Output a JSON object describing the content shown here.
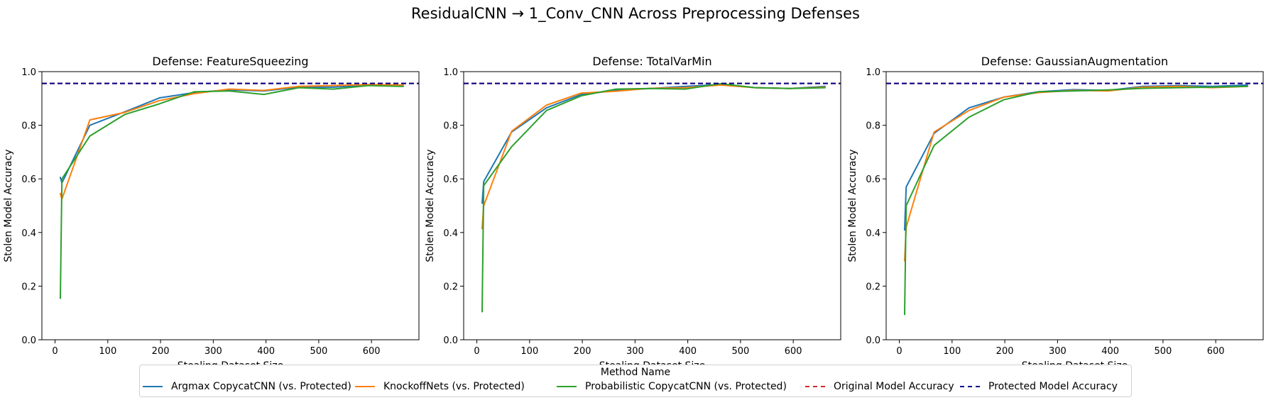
{
  "suptitle": "ResidualCNN → 1_Conv_CNN Across Preprocessing Defenses",
  "legend": {
    "title": "Method Name",
    "items": [
      {
        "label": "Argmax CopycatCNN (vs. Protected)",
        "color": "#1f77b4",
        "style": "solid"
      },
      {
        "label": "KnockoffNets (vs. Protected)",
        "color": "#ff7f0e",
        "style": "solid"
      },
      {
        "label": "Probabilistic CopycatCNN (vs. Protected)",
        "color": "#2ca02c",
        "style": "solid"
      },
      {
        "label": "Original Model Accuracy",
        "color": "#d62728",
        "style": "dashed"
      },
      {
        "label": "Protected Model Accuracy",
        "color": "#00008b",
        "style": "dashed"
      }
    ]
  },
  "chart_data": [
    {
      "type": "line",
      "title": "Defense: FeatureSqueezing",
      "xlabel": "Stealing Dataset Size",
      "ylabel": "Stolen Model Accuracy",
      "xlim": [
        -25,
        690
      ],
      "ylim": [
        0,
        1
      ],
      "xticks": [
        0,
        100,
        200,
        300,
        400,
        500,
        600
      ],
      "yticks": [
        0.0,
        0.2,
        0.4,
        0.6,
        0.8,
        1.0
      ],
      "reference_lines": [
        {
          "name": "Original Model Accuracy",
          "y": 0.956,
          "color": "#d62728"
        },
        {
          "name": "Protected Model Accuracy",
          "y": 0.956,
          "color": "#00008b"
        }
      ],
      "series": [
        {
          "name": "Argmax CopycatCNN (vs. Protected)",
          "color": "#1f77b4",
          "x": [
            10,
            13,
            66,
            132,
            198,
            264,
            330,
            396,
            462,
            528,
            594,
            660
          ],
          "y": [
            0.605,
            0.585,
            0.8,
            0.85,
            0.902,
            0.922,
            0.932,
            0.928,
            0.942,
            0.942,
            0.95,
            0.95
          ]
        },
        {
          "name": "KnockoffNets (vs. Protected)",
          "color": "#ff7f0e",
          "x": [
            10,
            13,
            66,
            132,
            198,
            264,
            330,
            396,
            462,
            528,
            594,
            660
          ],
          "y": [
            0.545,
            0.525,
            0.82,
            0.848,
            0.892,
            0.918,
            0.935,
            0.93,
            0.945,
            0.948,
            0.952,
            0.95
          ]
        },
        {
          "name": "Probabilistic CopycatCNN (vs. Protected)",
          "color": "#2ca02c",
          "x": [
            10,
            13,
            66,
            132,
            198,
            264,
            330,
            396,
            462,
            528,
            594,
            660
          ],
          "y": [
            0.155,
            0.6,
            0.76,
            0.84,
            0.88,
            0.925,
            0.928,
            0.915,
            0.94,
            0.935,
            0.948,
            0.945
          ]
        }
      ]
    },
    {
      "type": "line",
      "title": "Defense: TotalVarMin",
      "xlabel": "Stealing Dataset Size",
      "ylabel": "Stolen Model Accuracy",
      "xlim": [
        -25,
        690
      ],
      "ylim": [
        0,
        1
      ],
      "xticks": [
        0,
        100,
        200,
        300,
        400,
        500,
        600
      ],
      "yticks": [
        0.0,
        0.2,
        0.4,
        0.6,
        0.8,
        1.0
      ],
      "reference_lines": [
        {
          "name": "Original Model Accuracy",
          "y": 0.956,
          "color": "#d62728"
        },
        {
          "name": "Protected Model Accuracy",
          "y": 0.956,
          "color": "#00008b"
        }
      ],
      "series": [
        {
          "name": "Argmax CopycatCNN (vs. Protected)",
          "color": "#1f77b4",
          "x": [
            10,
            13,
            66,
            132,
            198,
            264,
            330,
            396,
            462,
            528,
            594,
            660
          ],
          "y": [
            0.51,
            0.59,
            0.775,
            0.865,
            0.915,
            0.93,
            0.937,
            0.945,
            0.952,
            0.94,
            0.937,
            0.945
          ]
        },
        {
          "name": "KnockoffNets (vs. Protected)",
          "color": "#ff7f0e",
          "x": [
            10,
            13,
            66,
            132,
            198,
            264,
            330,
            396,
            462,
            528,
            594,
            660
          ],
          "y": [
            0.415,
            0.5,
            0.778,
            0.875,
            0.92,
            0.927,
            0.938,
            0.94,
            0.95,
            0.94,
            0.937,
            0.942
          ]
        },
        {
          "name": "Probabilistic CopycatCNN (vs. Protected)",
          "color": "#2ca02c",
          "x": [
            10,
            13,
            66,
            132,
            198,
            264,
            330,
            396,
            462,
            528,
            594,
            660
          ],
          "y": [
            0.105,
            0.575,
            0.72,
            0.855,
            0.91,
            0.935,
            0.937,
            0.935,
            0.955,
            0.94,
            0.937,
            0.94
          ]
        }
      ]
    },
    {
      "type": "line",
      "title": "Defense: GaussianAugmentation",
      "xlabel": "Stealing Dataset Size",
      "ylabel": "Stolen Model Accuracy",
      "xlim": [
        -25,
        690
      ],
      "ylim": [
        0,
        1
      ],
      "xticks": [
        0,
        100,
        200,
        300,
        400,
        500,
        600
      ],
      "yticks": [
        0.0,
        0.2,
        0.4,
        0.6,
        0.8,
        1.0
      ],
      "reference_lines": [
        {
          "name": "Original Model Accuracy",
          "y": 0.956,
          "color": "#d62728"
        },
        {
          "name": "Protected Model Accuracy",
          "y": 0.956,
          "color": "#00008b"
        }
      ],
      "series": [
        {
          "name": "Argmax CopycatCNN (vs. Protected)",
          "color": "#1f77b4",
          "x": [
            10,
            13,
            66,
            132,
            198,
            264,
            330,
            396,
            462,
            528,
            594,
            660
          ],
          "y": [
            0.41,
            0.57,
            0.77,
            0.865,
            0.905,
            0.925,
            0.933,
            0.93,
            0.945,
            0.948,
            0.945,
            0.95
          ]
        },
        {
          "name": "KnockoffNets (vs. Protected)",
          "color": "#ff7f0e",
          "x": [
            10,
            13,
            66,
            132,
            198,
            264,
            330,
            396,
            462,
            528,
            594,
            660
          ],
          "y": [
            0.295,
            0.42,
            0.775,
            0.855,
            0.905,
            0.922,
            0.93,
            0.928,
            0.942,
            0.945,
            0.94,
            0.945
          ]
        },
        {
          "name": "Probabilistic CopycatCNN (vs. Protected)",
          "color": "#2ca02c",
          "x": [
            10,
            13,
            66,
            132,
            198,
            264,
            330,
            396,
            462,
            528,
            594,
            660
          ],
          "y": [
            0.095,
            0.5,
            0.725,
            0.83,
            0.895,
            0.925,
            0.928,
            0.932,
            0.938,
            0.94,
            0.942,
            0.945
          ]
        }
      ]
    }
  ]
}
